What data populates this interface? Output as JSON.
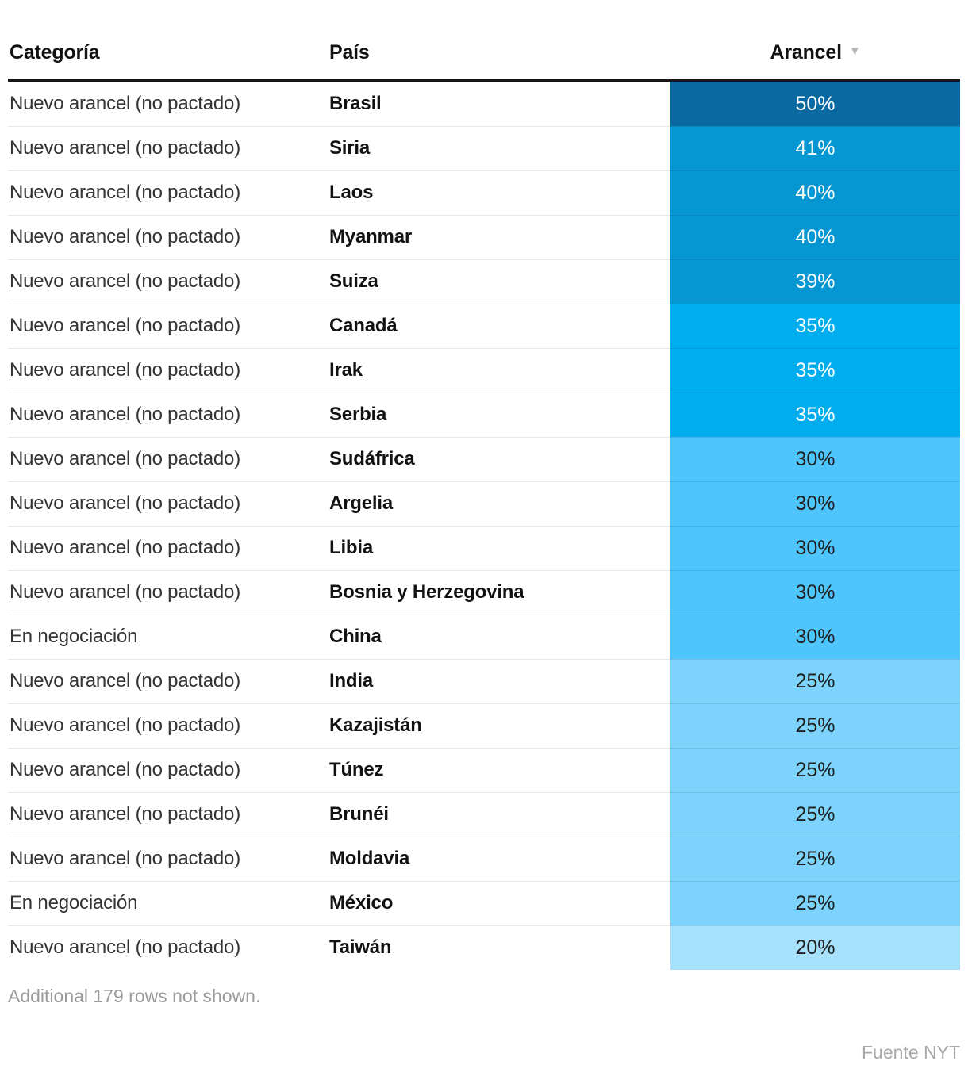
{
  "header": {
    "columns": [
      {
        "label": "Categoría"
      },
      {
        "label": "País"
      },
      {
        "label": "Arancel",
        "sort_icon": "▼",
        "sort_direction": "desc"
      }
    ]
  },
  "table": {
    "rows": [
      {
        "category": "Nuevo arancel (no pactado)",
        "country": "Brasil",
        "tariff": "50%",
        "bg": "#0a69a0",
        "fg": "#ffffff"
      },
      {
        "category": "Nuevo arancel (no pactado)",
        "country": "Siria",
        "tariff": "41%",
        "bg": "#0697d3",
        "fg": "#ffffff"
      },
      {
        "category": "Nuevo arancel (no pactado)",
        "country": "Laos",
        "tariff": "40%",
        "bg": "#0697d3",
        "fg": "#ffffff"
      },
      {
        "category": "Nuevo arancel (no pactado)",
        "country": "Myanmar",
        "tariff": "40%",
        "bg": "#0697d3",
        "fg": "#ffffff"
      },
      {
        "category": "Nuevo arancel (no pactado)",
        "country": "Suiza",
        "tariff": "39%",
        "bg": "#0697d3",
        "fg": "#ffffff"
      },
      {
        "category": "Nuevo arancel (no pactado)",
        "country": "Canadá",
        "tariff": "35%",
        "bg": "#00aeef",
        "fg": "#ffffff"
      },
      {
        "category": "Nuevo arancel (no pactado)",
        "country": "Irak",
        "tariff": "35%",
        "bg": "#00aeef",
        "fg": "#ffffff"
      },
      {
        "category": "Nuevo arancel (no pactado)",
        "country": "Serbia",
        "tariff": "35%",
        "bg": "#00aeef",
        "fg": "#ffffff"
      },
      {
        "category": "Nuevo arancel (no pactado)",
        "country": "Sudáfrica",
        "tariff": "30%",
        "bg": "#4ec6fd",
        "fg": "#1f1f1f"
      },
      {
        "category": "Nuevo arancel (no pactado)",
        "country": "Argelia",
        "tariff": "30%",
        "bg": "#4ec6fd",
        "fg": "#1f1f1f"
      },
      {
        "category": "Nuevo arancel (no pactado)",
        "country": "Libia",
        "tariff": "30%",
        "bg": "#4ec6fd",
        "fg": "#1f1f1f"
      },
      {
        "category": "Nuevo arancel (no pactado)",
        "country": "Bosnia y Herzegovina",
        "tariff": "30%",
        "bg": "#4ec6fd",
        "fg": "#1f1f1f"
      },
      {
        "category": "En negociación",
        "country": "China",
        "tariff": "30%",
        "bg": "#4ec6fd",
        "fg": "#1f1f1f"
      },
      {
        "category": "Nuevo arancel (no pactado)",
        "country": "India",
        "tariff": "25%",
        "bg": "#7dd3fb",
        "fg": "#1f1f1f"
      },
      {
        "category": "Nuevo arancel (no pactado)",
        "country": "Kazajistán",
        "tariff": "25%",
        "bg": "#7dd3fb",
        "fg": "#1f1f1f"
      },
      {
        "category": "Nuevo arancel (no pactado)",
        "country": "Túnez",
        "tariff": "25%",
        "bg": "#7dd3fb",
        "fg": "#1f1f1f"
      },
      {
        "category": "Nuevo arancel (no pactado)",
        "country": "Brunéi",
        "tariff": "25%",
        "bg": "#7dd3fb",
        "fg": "#1f1f1f"
      },
      {
        "category": "Nuevo arancel (no pactado)",
        "country": "Moldavia",
        "tariff": "25%",
        "bg": "#7dd3fb",
        "fg": "#1f1f1f"
      },
      {
        "category": "En negociación",
        "country": "México",
        "tariff": "25%",
        "bg": "#7dd3fb",
        "fg": "#1f1f1f"
      },
      {
        "category": "Nuevo arancel (no pactado)",
        "country": "Taiwán",
        "tariff": "20%",
        "bg": "#a6e0fa",
        "fg": "#1f1f1f"
      }
    ]
  },
  "footer": {
    "note": "Additional 179 rows not shown.",
    "source": "Fuente NYT"
  },
  "chart_data": {
    "type": "table",
    "title": "",
    "columns": [
      "Categoría",
      "País",
      "Arancel"
    ],
    "sort": {
      "column": "Arancel",
      "direction": "desc"
    },
    "rows": [
      [
        "Nuevo arancel (no pactado)",
        "Brasil",
        50
      ],
      [
        "Nuevo arancel (no pactado)",
        "Siria",
        41
      ],
      [
        "Nuevo arancel (no pactado)",
        "Laos",
        40
      ],
      [
        "Nuevo arancel (no pactado)",
        "Myanmar",
        40
      ],
      [
        "Nuevo arancel (no pactado)",
        "Suiza",
        39
      ],
      [
        "Nuevo arancel (no pactado)",
        "Canadá",
        35
      ],
      [
        "Nuevo arancel (no pactado)",
        "Irak",
        35
      ],
      [
        "Nuevo arancel (no pactado)",
        "Serbia",
        35
      ],
      [
        "Nuevo arancel (no pactado)",
        "Sudáfrica",
        30
      ],
      [
        "Nuevo arancel (no pactado)",
        "Argelia",
        30
      ],
      [
        "Nuevo arancel (no pactado)",
        "Libia",
        30
      ],
      [
        "Nuevo arancel (no pactado)",
        "Bosnia y Herzegovina",
        30
      ],
      [
        "En negociación",
        "China",
        30
      ],
      [
        "Nuevo arancel (no pactado)",
        "India",
        25
      ],
      [
        "Nuevo arancel (no pactado)",
        "Kazajistán",
        25
      ],
      [
        "Nuevo arancel (no pactado)",
        "Túnez",
        25
      ],
      [
        "Nuevo arancel (no pactado)",
        "Brunéi",
        25
      ],
      [
        "Nuevo arancel (no pactado)",
        "Moldavia",
        25
      ],
      [
        "En negociación",
        "México",
        25
      ],
      [
        "Nuevo arancel (no pactado)",
        "Taiwán",
        20
      ]
    ],
    "value_unit": "%",
    "color_scale": {
      "50": "#0a69a0",
      "39-41": "#0697d3",
      "35": "#00aeef",
      "30": "#4ec6fd",
      "25": "#7dd3fb",
      "20": "#a6e0fa"
    },
    "footnote": "Additional 179 rows not shown.",
    "source": "Fuente NYT"
  }
}
